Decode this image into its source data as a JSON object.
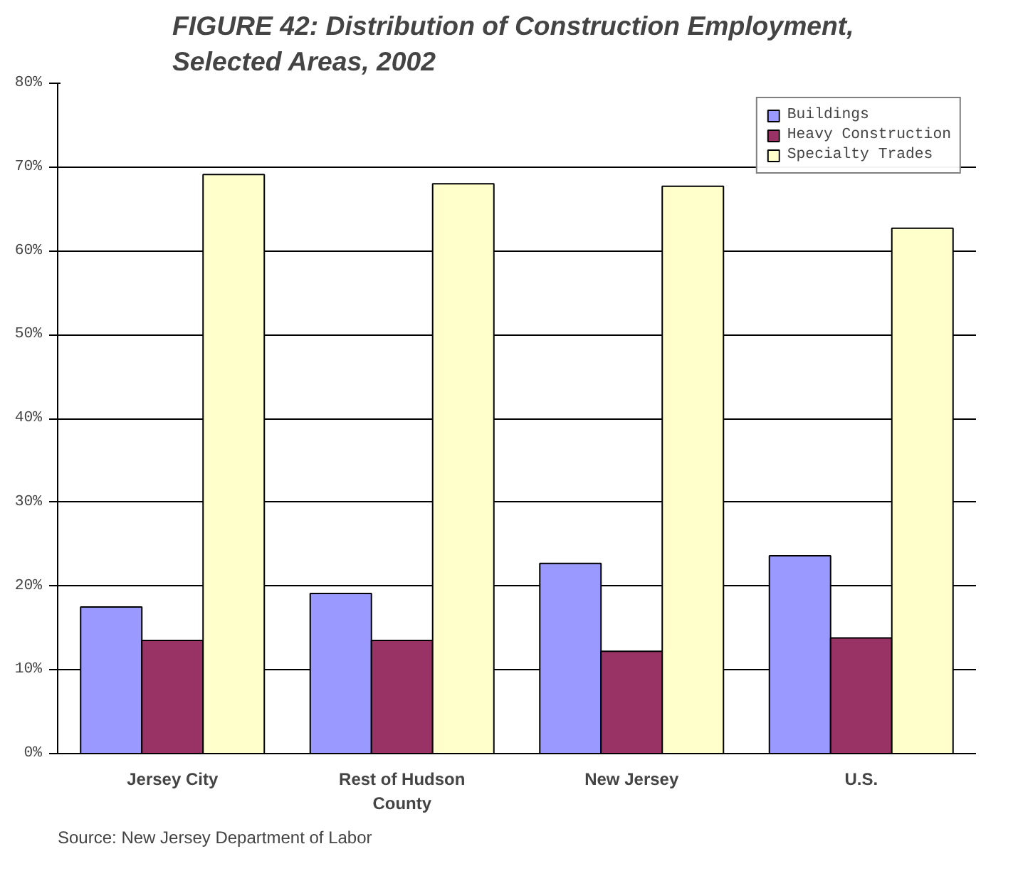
{
  "chart_data": {
    "type": "bar",
    "title": "FIGURE 42:  Distribution of Construction Employment, Selected Areas, 2002",
    "categories": [
      "Jersey City",
      "Rest of Hudson County",
      "New Jersey",
      "U.S."
    ],
    "series": [
      {
        "name": "Buildings",
        "color": "#9999ff",
        "values": [
          17.5,
          19.1,
          22.7,
          23.6
        ]
      },
      {
        "name": "Heavy Construction",
        "color": "#993366",
        "values": [
          13.5,
          13.5,
          12.2,
          13.8
        ]
      },
      {
        "name": "Specialty Trades",
        "color": "#ffffcc",
        "values": [
          69.1,
          68.0,
          67.7,
          62.7
        ]
      }
    ],
    "ylim": [
      0,
      80
    ],
    "yticks": [
      {
        "value": 0,
        "label": "0%"
      },
      {
        "value": 10,
        "label": "10%"
      },
      {
        "value": 20,
        "label": "20%"
      },
      {
        "value": 30,
        "label": "30%"
      },
      {
        "value": 40,
        "label": "40%"
      },
      {
        "value": 50,
        "label": "50%"
      },
      {
        "value": 60,
        "label": "60%"
      },
      {
        "value": 70,
        "label": "70%"
      },
      {
        "value": 80,
        "label": "80%"
      }
    ],
    "grid": "y",
    "legend": "top right",
    "annotations": [
      "Source: New Jersey Department of Labor"
    ]
  }
}
